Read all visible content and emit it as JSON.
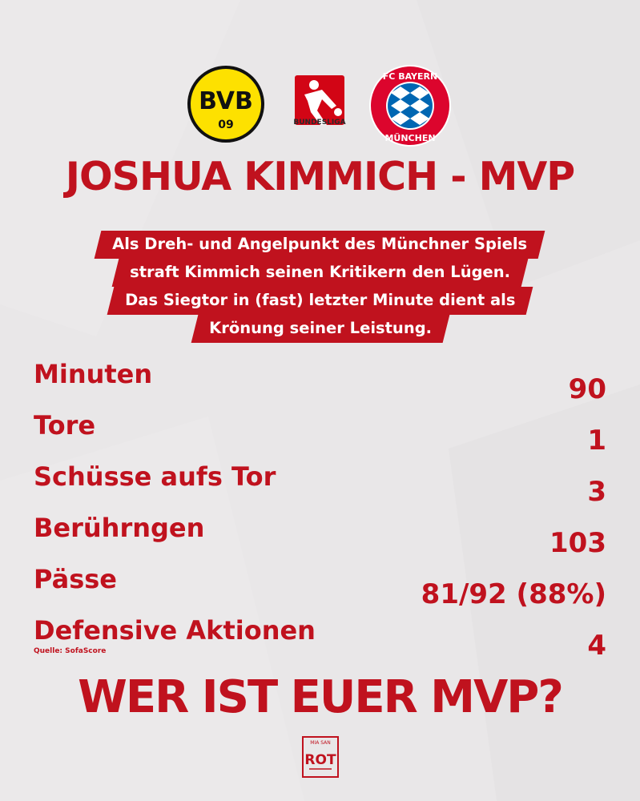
{
  "logos": {
    "bvb_text_top": "BVB",
    "bvb_text_bottom": "09",
    "bundesliga_label": "BUNDESLIGA",
    "fcb_top": "FC BAYERN",
    "fcb_bottom": "MÜNCHEN",
    "msr_top": "MIA SAN",
    "msr_bottom": "ROT"
  },
  "title": "JOSHUA KIMMICH - MVP",
  "banner_lines": [
    "Als Dreh- und Angelpunkt des Münchner Spiels",
    "straft Kimmich seinen Kritikern den Lügen.",
    "Das Siegtor in (fast) letzter Minute dient als",
    "Krönung seiner Leistung."
  ],
  "stats": [
    {
      "label": "Minuten",
      "value": "90"
    },
    {
      "label": "Tore",
      "value": "1"
    },
    {
      "label": "Schüsse aufs Tor",
      "value": "3"
    },
    {
      "label": "Berührngen",
      "value": "103"
    },
    {
      "label": "Pässe",
      "value": "81/92 (88%)"
    },
    {
      "label": "Defensive Aktionen",
      "value": "4"
    }
  ],
  "source": "Quelle: SofaScore",
  "cta": "WER IST EUER MVP?",
  "colors": {
    "accent": "#c0121e",
    "background": "#e9e7e8",
    "bvb_yellow": "#fde100",
    "fcb_blue": "#0066b2"
  }
}
